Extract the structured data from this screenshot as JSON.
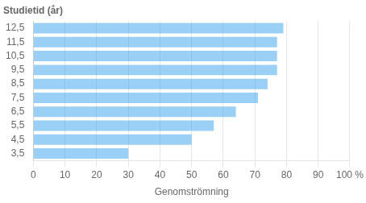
{
  "chart_data": {
    "type": "bar",
    "orientation": "horizontal",
    "title": "Studietid (år)",
    "xlabel": "Genomströmning",
    "categories": [
      "3,5",
      "4,5",
      "5,5",
      "6,5",
      "7,5",
      "8,5",
      "9,5",
      "10,5",
      "11,5",
      "12,5"
    ],
    "values": [
      30,
      50,
      57,
      64,
      71,
      74,
      77,
      77,
      77,
      79
    ],
    "xlim": [
      0,
      100
    ],
    "xticks": [
      0,
      10,
      20,
      30,
      40,
      50,
      60,
      70,
      80,
      90,
      {
        "value": 100,
        "label": "100 %"
      }
    ],
    "grid": true
  }
}
